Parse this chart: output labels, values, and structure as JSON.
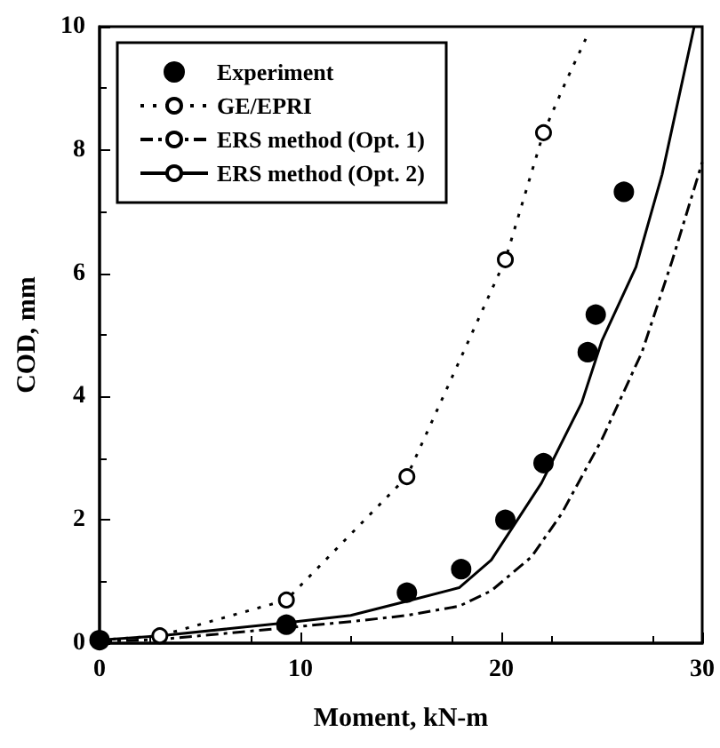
{
  "chart_data": {
    "type": "line",
    "xlabel": "Moment, kN-m",
    "ylabel": "COD, mm",
    "xlim": [
      0,
      30
    ],
    "xticks": [
      0,
      10,
      20,
      30
    ],
    "ylim": [
      0,
      10
    ],
    "yticks": [
      0,
      2,
      4,
      6,
      8,
      10
    ],
    "grid": false,
    "legend": "top left",
    "series": [
      {
        "name": "Experiment",
        "type": "scatter",
        "color": "#000000",
        "marker": "circle",
        "x": [
          0,
          9.3,
          15.3,
          18,
          20.2,
          22.1,
          24.3,
          24.7,
          26.1
        ],
        "values": [
          0.05,
          0.3,
          0.82,
          1.2,
          2.0,
          2.92,
          4.72,
          5.33,
          7.32
        ]
      },
      {
        "name": "GE/EPRI",
        "type": "line",
        "color": "#000000",
        "marker": "circle",
        "line_style": "dotted",
        "x": [
          0,
          3,
          9.3,
          15.3,
          20.2,
          22.1
        ],
        "values": [
          0.05,
          0.12,
          0.7,
          2.7,
          6.22,
          8.28
        ]
      },
      {
        "type": "line",
        "color": "#000000",
        "marker": "none",
        "line_style": "dotted",
        "x": [
          22.1,
          23.2,
          24.2
        ],
        "values": [
          8.28,
          9.1,
          9.8
        ]
      },
      {
        "name": "ERS method (Opt. 1)",
        "type": "line",
        "color": "#000000",
        "marker": "none",
        "line_style": "dashed",
        "x": [
          0,
          3,
          9.3,
          12.5,
          15.3,
          17.9,
          19.5,
          21.5,
          23,
          25,
          27,
          28.5,
          30
        ],
        "values": [
          0.03,
          0.06,
          0.25,
          0.35,
          0.45,
          0.6,
          0.85,
          1.4,
          2.1,
          3.3,
          4.72,
          6.2,
          7.8
        ]
      },
      {
        "name": "ERS method (Opt. 2)",
        "type": "line",
        "color": "#000000",
        "marker": "none",
        "line_style": "solid",
        "x": [
          0,
          3,
          9.3,
          12.5,
          15.3,
          17.9,
          19.5,
          22,
          24,
          25,
          26.7,
          28,
          29.6
        ],
        "values": [
          0.05,
          0.12,
          0.33,
          0.45,
          0.68,
          0.9,
          1.35,
          2.6,
          3.9,
          4.9,
          6.1,
          7.6,
          10
        ]
      }
    ]
  }
}
